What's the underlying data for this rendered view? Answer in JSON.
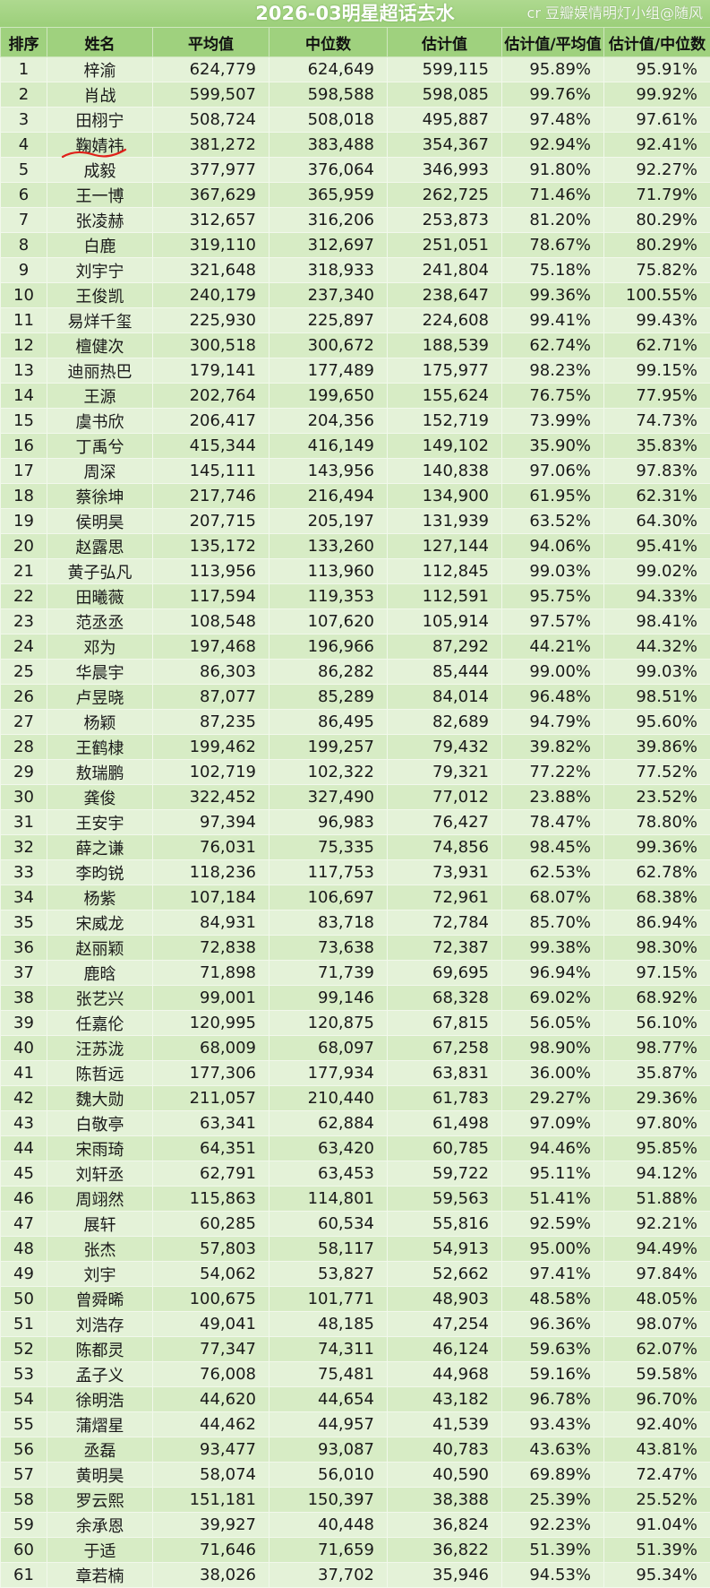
{
  "title": "2026-03明星超话去水",
  "credit": "cr 豆瓣娱情明灯小组@随风",
  "headers": [
    "排序",
    "姓名",
    "平均值",
    "中位数",
    "估计值",
    "估计值/平均值",
    "估计值/中位数"
  ],
  "rows": [
    [
      "1",
      "梓渝",
      "624,779",
      "624,649",
      "599,115",
      "95.89%",
      "95.91%"
    ],
    [
      "2",
      "肖战",
      "599,507",
      "598,588",
      "598,085",
      "99.76%",
      "99.92%"
    ],
    [
      "3",
      "田栩宁",
      "508,724",
      "508,018",
      "495,887",
      "97.48%",
      "97.61%"
    ],
    [
      "4",
      "鞠婧祎",
      "381,272",
      "383,488",
      "354,367",
      "92.94%",
      "92.41%"
    ],
    [
      "5",
      "成毅",
      "377,977",
      "376,064",
      "346,993",
      "91.80%",
      "92.27%"
    ],
    [
      "6",
      "王一博",
      "367,629",
      "365,959",
      "262,725",
      "71.46%",
      "71.79%"
    ],
    [
      "7",
      "张凌赫",
      "312,657",
      "316,206",
      "253,873",
      "81.20%",
      "80.29%"
    ],
    [
      "8",
      "白鹿",
      "319,110",
      "312,697",
      "251,051",
      "78.67%",
      "80.29%"
    ],
    [
      "9",
      "刘宇宁",
      "321,648",
      "318,933",
      "241,804",
      "75.18%",
      "75.82%"
    ],
    [
      "10",
      "王俊凯",
      "240,179",
      "237,340",
      "238,647",
      "99.36%",
      "100.55%"
    ],
    [
      "11",
      "易烊千玺",
      "225,930",
      "225,897",
      "224,608",
      "99.41%",
      "99.43%"
    ],
    [
      "12",
      "檀健次",
      "300,518",
      "300,672",
      "188,539",
      "62.74%",
      "62.71%"
    ],
    [
      "13",
      "迪丽热巴",
      "179,141",
      "177,489",
      "175,977",
      "98.23%",
      "99.15%"
    ],
    [
      "14",
      "王源",
      "202,764",
      "199,650",
      "155,624",
      "76.75%",
      "77.95%"
    ],
    [
      "15",
      "虞书欣",
      "206,417",
      "204,356",
      "152,719",
      "73.99%",
      "74.73%"
    ],
    [
      "16",
      "丁禹兮",
      "415,344",
      "416,149",
      "149,102",
      "35.90%",
      "35.83%"
    ],
    [
      "17",
      "周深",
      "145,111",
      "143,956",
      "140,838",
      "97.06%",
      "97.83%"
    ],
    [
      "18",
      "蔡徐坤",
      "217,746",
      "216,494",
      "134,900",
      "61.95%",
      "62.31%"
    ],
    [
      "19",
      "侯明昊",
      "207,715",
      "205,197",
      "131,939",
      "63.52%",
      "64.30%"
    ],
    [
      "20",
      "赵露思",
      "135,172",
      "133,260",
      "127,144",
      "94.06%",
      "95.41%"
    ],
    [
      "21",
      "黄子弘凡",
      "113,956",
      "113,960",
      "112,845",
      "99.03%",
      "99.02%"
    ],
    [
      "22",
      "田曦薇",
      "117,594",
      "119,353",
      "112,591",
      "95.75%",
      "94.33%"
    ],
    [
      "23",
      "范丞丞",
      "108,548",
      "107,620",
      "105,914",
      "97.57%",
      "98.41%"
    ],
    [
      "24",
      "邓为",
      "197,468",
      "196,966",
      "87,292",
      "44.21%",
      "44.32%"
    ],
    [
      "25",
      "华晨宇",
      "86,303",
      "86,282",
      "85,444",
      "99.00%",
      "99.03%"
    ],
    [
      "26",
      "卢昱晓",
      "87,077",
      "85,289",
      "84,014",
      "96.48%",
      "98.51%"
    ],
    [
      "27",
      "杨颖",
      "87,235",
      "86,495",
      "82,689",
      "94.79%",
      "95.60%"
    ],
    [
      "28",
      "王鹤棣",
      "199,462",
      "199,257",
      "79,432",
      "39.82%",
      "39.86%"
    ],
    [
      "29",
      "敖瑞鹏",
      "102,719",
      "102,322",
      "79,321",
      "77.22%",
      "77.52%"
    ],
    [
      "30",
      "龚俊",
      "322,452",
      "327,490",
      "77,012",
      "23.88%",
      "23.52%"
    ],
    [
      "31",
      "王安宇",
      "97,394",
      "96,983",
      "76,427",
      "78.47%",
      "78.80%"
    ],
    [
      "32",
      "薛之谦",
      "76,031",
      "75,335",
      "74,856",
      "98.45%",
      "99.36%"
    ],
    [
      "33",
      "李昀锐",
      "118,236",
      "117,753",
      "73,931",
      "62.53%",
      "62.78%"
    ],
    [
      "34",
      "杨紫",
      "107,184",
      "106,697",
      "72,961",
      "68.07%",
      "68.38%"
    ],
    [
      "35",
      "宋威龙",
      "84,931",
      "83,718",
      "72,784",
      "85.70%",
      "86.94%"
    ],
    [
      "36",
      "赵丽颖",
      "72,838",
      "73,638",
      "72,387",
      "99.38%",
      "98.30%"
    ],
    [
      "37",
      "鹿晗",
      "71,898",
      "71,739",
      "69,695",
      "96.94%",
      "97.15%"
    ],
    [
      "38",
      "张艺兴",
      "99,001",
      "99,146",
      "68,328",
      "69.02%",
      "68.92%"
    ],
    [
      "39",
      "任嘉伦",
      "120,995",
      "120,875",
      "67,815",
      "56.05%",
      "56.10%"
    ],
    [
      "40",
      "汪苏泷",
      "68,009",
      "68,097",
      "67,258",
      "98.90%",
      "98.77%"
    ],
    [
      "41",
      "陈哲远",
      "177,306",
      "177,934",
      "63,831",
      "36.00%",
      "35.87%"
    ],
    [
      "42",
      "魏大勋",
      "211,057",
      "210,440",
      "61,783",
      "29.27%",
      "29.36%"
    ],
    [
      "43",
      "白敬亭",
      "63,341",
      "62,884",
      "61,498",
      "97.09%",
      "97.80%"
    ],
    [
      "44",
      "宋雨琦",
      "64,351",
      "63,420",
      "60,785",
      "94.46%",
      "95.85%"
    ],
    [
      "45",
      "刘轩丞",
      "62,791",
      "63,453",
      "59,722",
      "95.11%",
      "94.12%"
    ],
    [
      "46",
      "周翊然",
      "115,863",
      "114,801",
      "59,563",
      "51.41%",
      "51.88%"
    ],
    [
      "47",
      "展轩",
      "60,285",
      "60,534",
      "55,816",
      "92.59%",
      "92.21%"
    ],
    [
      "48",
      "张杰",
      "57,803",
      "58,117",
      "54,913",
      "95.00%",
      "94.49%"
    ],
    [
      "49",
      "刘宇",
      "54,062",
      "53,827",
      "52,662",
      "97.41%",
      "97.84%"
    ],
    [
      "50",
      "曾舜晞",
      "100,675",
      "101,771",
      "48,903",
      "48.58%",
      "48.05%"
    ],
    [
      "51",
      "刘浩存",
      "49,041",
      "48,185",
      "47,254",
      "96.36%",
      "98.07%"
    ],
    [
      "52",
      "陈都灵",
      "77,347",
      "74,311",
      "46,124",
      "59.63%",
      "62.07%"
    ],
    [
      "53",
      "孟子义",
      "76,008",
      "75,481",
      "44,968",
      "59.16%",
      "59.58%"
    ],
    [
      "54",
      "徐明浩",
      "44,620",
      "44,654",
      "43,182",
      "96.78%",
      "96.70%"
    ],
    [
      "55",
      "蒲熠星",
      "44,462",
      "44,957",
      "41,539",
      "93.43%",
      "92.40%"
    ],
    [
      "56",
      "丞磊",
      "93,477",
      "93,087",
      "40,783",
      "43.63%",
      "43.81%"
    ],
    [
      "57",
      "黄明昊",
      "58,074",
      "56,010",
      "40,590",
      "69.89%",
      "72.47%"
    ],
    [
      "58",
      "罗云熙",
      "151,181",
      "150,397",
      "38,388",
      "25.39%",
      "25.52%"
    ],
    [
      "59",
      "余承恩",
      "39,927",
      "40,448",
      "36,824",
      "92.23%",
      "91.04%"
    ],
    [
      "60",
      "于适",
      "71,646",
      "71,659",
      "36,822",
      "51.39%",
      "51.39%"
    ],
    [
      "61",
      "章若楠",
      "38,026",
      "37,702",
      "35,946",
      "94.53%",
      "95.34%"
    ]
  ],
  "colors": {
    "header_bg": "#9fd17e",
    "row_light": "#e4f2d8",
    "row_dark": "#d7ecc5",
    "annotation": "#e0201a"
  }
}
